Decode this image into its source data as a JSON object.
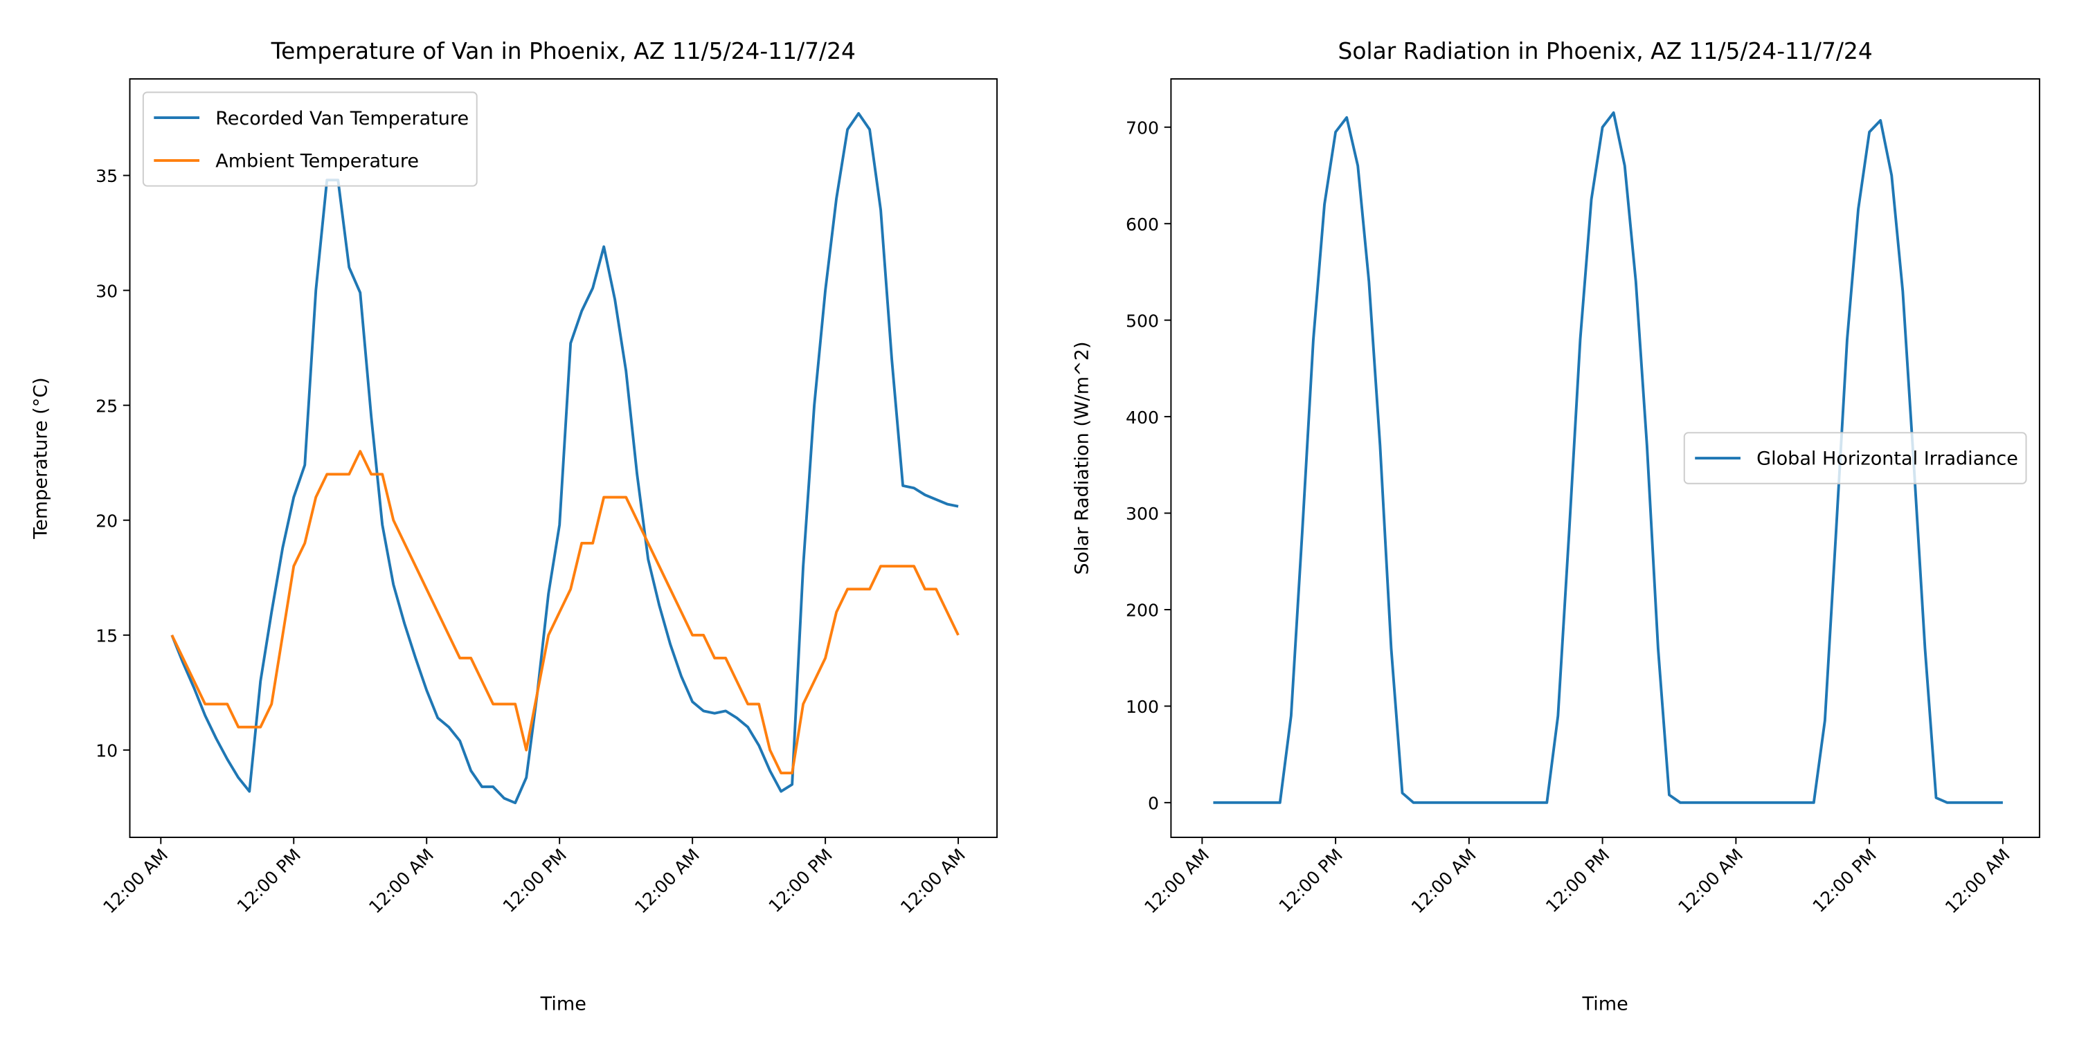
{
  "chart_data": [
    {
      "type": "line",
      "title": "Temperature of Van in Phoenix, AZ 11/5/24-11/7/24",
      "xlabel": "Time",
      "ylabel": "Temperature (°C)",
      "x": [
        1,
        2,
        3,
        4,
        5,
        6,
        7,
        8,
        9,
        10,
        11,
        12,
        13,
        14,
        15,
        16,
        17,
        18,
        19,
        20,
        21,
        22,
        23,
        24,
        25,
        26,
        27,
        28,
        29,
        30,
        31,
        32,
        33,
        34,
        35,
        36,
        37,
        38,
        39,
        40,
        41,
        42,
        43,
        44,
        45,
        46,
        47,
        48,
        49,
        50,
        51,
        52,
        53,
        54,
        55,
        56,
        57,
        58,
        59,
        60,
        61,
        62,
        63,
        64,
        65,
        66,
        67,
        68,
        69,
        70,
        71,
        72
      ],
      "series": [
        {
          "name": "Recorded Van Temperature",
          "color": "#1f77b4",
          "values": [
            15,
            13.8,
            12.7,
            11.5,
            10.5,
            9.6,
            8.8,
            8.2,
            13,
            16,
            18.8,
            21,
            22.4,
            30,
            34.8,
            34.8,
            31,
            29.9,
            24.5,
            19.8,
            17.2,
            15.5,
            14,
            12.6,
            11.4,
            11,
            10.4,
            9.1,
            8.4,
            8.4,
            7.9,
            7.7,
            8.8,
            12.5,
            16.8,
            19.8,
            27.7,
            29.1,
            30.1,
            31.9,
            29.6,
            26.5,
            22,
            18.3,
            16.3,
            14.6,
            13.2,
            12.1,
            11.7,
            11.6,
            11.7,
            11.4,
            11,
            10.2,
            9.1,
            8.2,
            8.5,
            18,
            25,
            30,
            34,
            37,
            37.7,
            37,
            33.5,
            27,
            21.5,
            21.4,
            21.1,
            20.9,
            20.7,
            20.6
          ]
        },
        {
          "name": "Ambient Temperature",
          "color": "#ff7f0e",
          "values": [
            15,
            14,
            13,
            12,
            12,
            12,
            11,
            11,
            11,
            12,
            15,
            18,
            19,
            21,
            22,
            22,
            22,
            23,
            22,
            22,
            20,
            19,
            18,
            17,
            16,
            15,
            14,
            14,
            13,
            12,
            12,
            12,
            10,
            12.5,
            15,
            16,
            17,
            19,
            19,
            21,
            21,
            21,
            20,
            19,
            18,
            17,
            16,
            15,
            15,
            14,
            14,
            13,
            12,
            12,
            10,
            9,
            9,
            12,
            13,
            14,
            16,
            17,
            17,
            17,
            18,
            18,
            18,
            18,
            17,
            17,
            16,
            15
          ]
        }
      ],
      "xlim": [
        -2.8,
        75.5
      ],
      "ylim": [
        6.2,
        39.2
      ],
      "xticks": [
        {
          "value": 0,
          "label": "12:00 AM"
        },
        {
          "value": 12,
          "label": "12:00 PM"
        },
        {
          "value": 24,
          "label": "12:00 AM"
        },
        {
          "value": 36,
          "label": "12:00 PM"
        },
        {
          "value": 48,
          "label": "12:00 AM"
        },
        {
          "value": 60,
          "label": "12:00 PM"
        },
        {
          "value": 72,
          "label": "12:00 AM"
        }
      ],
      "yticks": [
        10,
        15,
        20,
        25,
        30,
        35
      ],
      "legend": "upper left",
      "grid": false
    },
    {
      "type": "line",
      "title": "Solar Radiation in Phoenix, AZ 11/5/24-11/7/24",
      "xlabel": "Time",
      "ylabel": "Solar Radiation (W/m^2)",
      "x": [
        1,
        2,
        3,
        4,
        5,
        6,
        7,
        8,
        9,
        10,
        11,
        12,
        13,
        14,
        15,
        16,
        17,
        18,
        19,
        20,
        21,
        22,
        23,
        24,
        25,
        26,
        27,
        28,
        29,
        30,
        31,
        32,
        33,
        34,
        35,
        36,
        37,
        38,
        39,
        40,
        41,
        42,
        43,
        44,
        45,
        46,
        47,
        48,
        49,
        50,
        51,
        52,
        53,
        54,
        55,
        56,
        57,
        58,
        59,
        60,
        61,
        62,
        63,
        64,
        65,
        66,
        67,
        68,
        69,
        70,
        71,
        72
      ],
      "series": [
        {
          "name": "Global Horizontal Irradiance",
          "color": "#1f77b4",
          "values": [
            0,
            0,
            0,
            0,
            0,
            0,
            0,
            90,
            280,
            480,
            620,
            695,
            710,
            660,
            540,
            370,
            160,
            10,
            0,
            0,
            0,
            0,
            0,
            0,
            0,
            0,
            0,
            0,
            0,
            0,
            0,
            90,
            280,
            480,
            625,
            700,
            715,
            660,
            540,
            370,
            160,
            8,
            0,
            0,
            0,
            0,
            0,
            0,
            0,
            0,
            0,
            0,
            0,
            0,
            0,
            85,
            280,
            480,
            615,
            695,
            707,
            650,
            530,
            350,
            160,
            5,
            0,
            0,
            0,
            0,
            0,
            0
          ]
        }
      ],
      "xlim": [
        -2.8,
        75.3
      ],
      "ylim": [
        -36,
        750
      ],
      "xticks": [
        {
          "value": 0,
          "label": "12:00 AM"
        },
        {
          "value": 12,
          "label": "12:00 PM"
        },
        {
          "value": 24,
          "label": "12:00 AM"
        },
        {
          "value": 36,
          "label": "12:00 PM"
        },
        {
          "value": 48,
          "label": "12:00 AM"
        },
        {
          "value": 60,
          "label": "12:00 PM"
        },
        {
          "value": 72,
          "label": "12:00 AM"
        }
      ],
      "yticks": [
        0,
        100,
        200,
        300,
        400,
        500,
        600,
        700
      ],
      "legend": "center right",
      "grid": false
    }
  ]
}
